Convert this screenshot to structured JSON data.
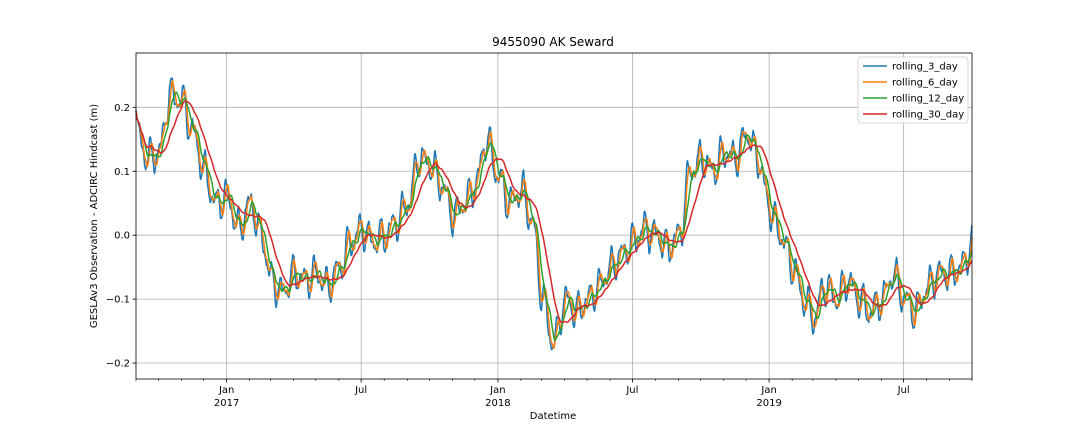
{
  "chart_data": {
    "type": "line",
    "title": "9455090 AK Seward",
    "xlabel": "Datetime",
    "ylabel": "GESLAv3 Observation - ADCIRC Hindcast (m)",
    "xlim": [
      "2016-09-01",
      "2019-10-01"
    ],
    "ylim": [
      -0.225,
      0.285
    ],
    "grid": true,
    "legend_position": "top-right",
    "y_ticks": [
      {
        "value": -0.2,
        "label": "−0.2"
      },
      {
        "value": -0.1,
        "label": "−0.1"
      },
      {
        "value": 0.0,
        "label": "0.0"
      },
      {
        "value": 0.1,
        "label": "0.1"
      },
      {
        "value": 0.2,
        "label": "0.2"
      }
    ],
    "x_ticks_major": [
      {
        "date": "2017-01-01",
        "label": "Jan",
        "sublabel": "2017"
      },
      {
        "date": "2017-07-01",
        "label": "Jul",
        "sublabel": ""
      },
      {
        "date": "2018-01-01",
        "label": "Jan",
        "sublabel": "2018"
      },
      {
        "date": "2018-07-01",
        "label": "Jul",
        "sublabel": ""
      },
      {
        "date": "2019-01-01",
        "label": "Jan",
        "sublabel": "2019"
      },
      {
        "date": "2019-07-01",
        "label": "Jul",
        "sublabel": ""
      }
    ],
    "anchors": {
      "x": [
        "2016-09-01",
        "2016-09-15",
        "2016-10-01",
        "2016-10-15",
        "2016-11-01",
        "2016-11-15",
        "2016-12-01",
        "2016-12-15",
        "2017-01-01",
        "2017-01-15",
        "2017-02-01",
        "2017-02-15",
        "2017-03-01",
        "2017-03-15",
        "2017-04-01",
        "2017-04-15",
        "2017-05-01",
        "2017-05-15",
        "2017-06-01",
        "2017-06-15",
        "2017-07-01",
        "2017-07-15",
        "2017-08-01",
        "2017-08-15",
        "2017-09-01",
        "2017-09-15",
        "2017-10-01",
        "2017-10-15",
        "2017-11-01",
        "2017-11-15",
        "2017-12-01",
        "2017-12-15",
        "2018-01-01",
        "2018-01-15",
        "2018-02-01",
        "2018-02-15",
        "2018-03-01",
        "2018-03-15",
        "2018-04-01",
        "2018-04-15",
        "2018-05-01",
        "2018-05-15",
        "2018-06-01",
        "2018-06-15",
        "2018-07-01",
        "2018-07-15",
        "2018-08-01",
        "2018-08-15",
        "2018-09-01",
        "2018-09-15",
        "2018-10-01",
        "2018-10-15",
        "2018-11-01",
        "2018-11-15",
        "2018-12-01",
        "2018-12-15",
        "2019-01-01",
        "2019-01-15",
        "2019-02-01",
        "2019-02-15",
        "2019-03-01",
        "2019-03-15",
        "2019-04-01",
        "2019-04-15",
        "2019-05-01",
        "2019-05-15",
        "2019-06-01",
        "2019-06-15",
        "2019-07-01",
        "2019-07-15",
        "2019-08-01",
        "2019-08-15",
        "2019-09-01",
        "2019-09-15",
        "2019-10-01"
      ],
      "y": [
        0.16,
        0.12,
        0.13,
        0.22,
        0.21,
        0.16,
        0.1,
        0.05,
        0.06,
        0.01,
        0.05,
        0.0,
        -0.07,
        -0.09,
        -0.06,
        -0.07,
        -0.06,
        -0.08,
        -0.05,
        -0.01,
        0.01,
        -0.01,
        0.0,
        0.02,
        0.05,
        0.12,
        0.11,
        0.08,
        0.03,
        0.05,
        0.08,
        0.15,
        0.09,
        0.05,
        0.07,
        0.02,
        -0.1,
        -0.17,
        -0.1,
        -0.12,
        -0.1,
        -0.08,
        -0.05,
        -0.03,
        -0.01,
        0.01,
        0.0,
        -0.02,
        0.0,
        0.1,
        0.12,
        0.1,
        0.13,
        0.12,
        0.16,
        0.12,
        0.04,
        0.0,
        -0.05,
        -0.1,
        -0.13,
        -0.08,
        -0.1,
        -0.07,
        -0.1,
        -0.12,
        -0.1,
        -0.06,
        -0.1,
        -0.12,
        -0.08,
        -0.06,
        -0.06,
        -0.05,
        -0.01
      ]
    },
    "series": [
      {
        "name": "rolling_3_day",
        "color": "#1f77b4",
        "window_days": 3
      },
      {
        "name": "rolling_6_day",
        "color": "#ff7f0e",
        "window_days": 6
      },
      {
        "name": "rolling_12_day",
        "color": "#2ca02c",
        "window_days": 12
      },
      {
        "name": "rolling_30_day",
        "color": "#d62728",
        "window_days": 30
      }
    ]
  }
}
